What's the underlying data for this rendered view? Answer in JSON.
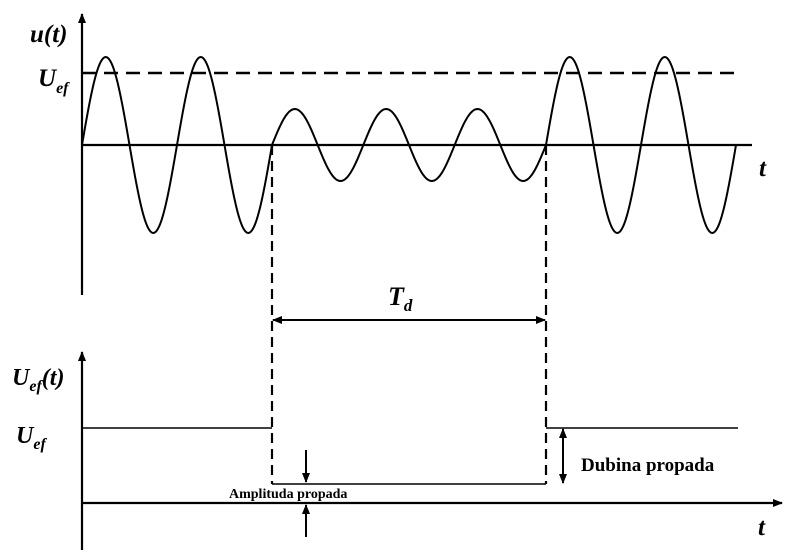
{
  "top_plot": {
    "y_label_base": "u",
    "y_label_paren": "(t)",
    "ref_label_base": "U",
    "ref_label_sub": "ef",
    "x_label": "t"
  },
  "interval": {
    "label_base": "T",
    "label_sub": "d"
  },
  "bottom_plot": {
    "y_label_base": "U",
    "y_label_sub": "ef",
    "y_label_paren": "(t)",
    "level_label_base": "U",
    "level_label_sub": "ef",
    "x_label": "t",
    "depth_label": "Dubina propada",
    "amplitude_label": "Amplituda propada"
  }
}
